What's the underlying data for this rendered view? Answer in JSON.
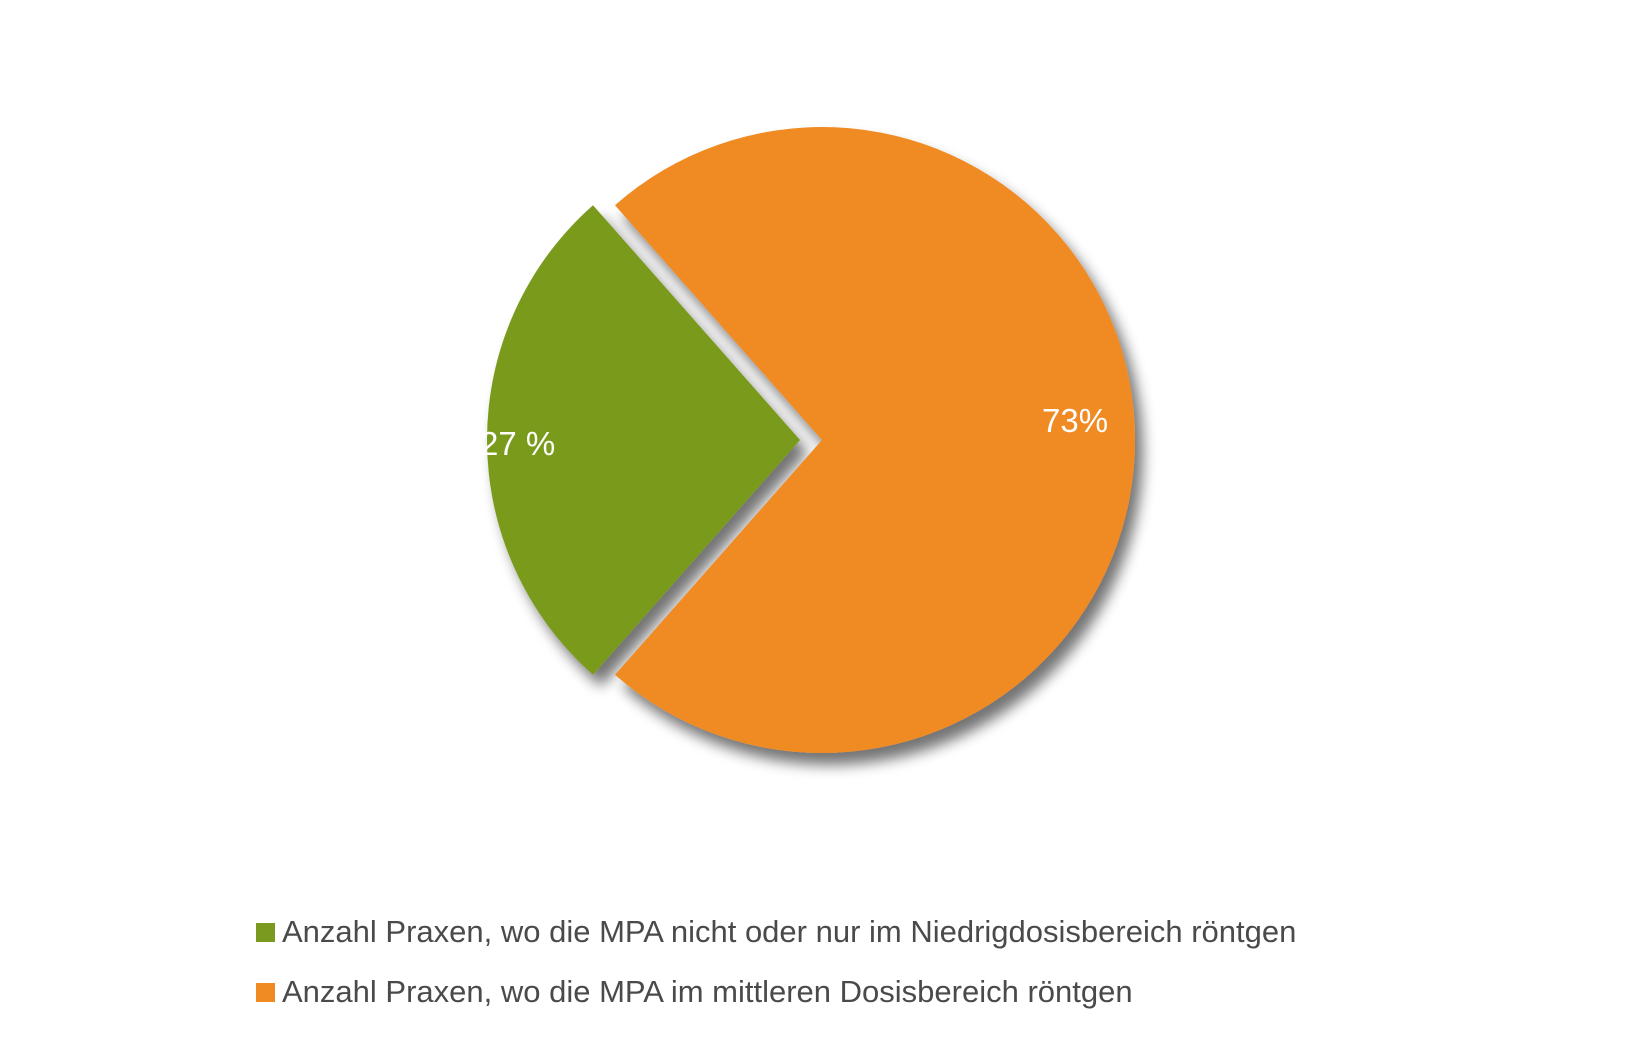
{
  "colors": {
    "green": "#7a9a1f",
    "orange": "#f08a22"
  },
  "chart_data": {
    "type": "pie",
    "slices": [
      {
        "label": "Anzahl Praxen, wo die MPA nicht oder nur im Niedrigdosisbereich röntgen",
        "value": 27,
        "display": "27 %",
        "color": "#7a9a1f",
        "exploded": true
      },
      {
        "label": "Anzahl Praxen, wo die MPA im mittleren Dosisbereich röntgen",
        "value": 73,
        "display": "73%",
        "color": "#f08a22",
        "exploded": false
      }
    ],
    "legend_position": "bottom-left"
  },
  "legend": {
    "items": [
      {
        "label": "Anzahl Praxen, wo die MPA nicht oder nur im Niedrigdosisbereich röntgen",
        "color": "#7a9a1f"
      },
      {
        "label": "Anzahl Praxen, wo die MPA im mittleren Dosisbereich röntgen",
        "color": "#f08a22"
      }
    ]
  }
}
